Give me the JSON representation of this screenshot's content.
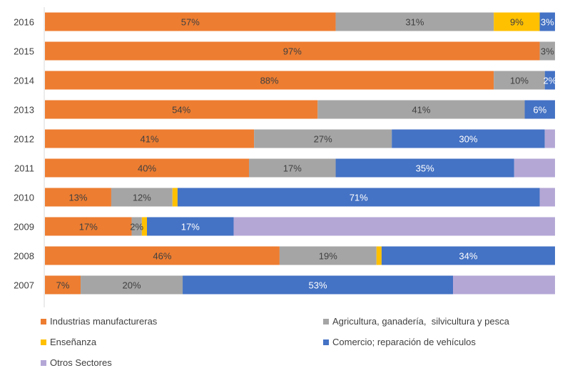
{
  "chart_data": {
    "type": "bar",
    "orientation": "horizontal",
    "stacked": "100%",
    "categories": [
      "2016",
      "2015",
      "2014",
      "2013",
      "2012",
      "2011",
      "2010",
      "2009",
      "2008",
      "2007"
    ],
    "series": [
      {
        "name": "Industrias manufactureras",
        "color": "#ED7D31",
        "values": [
          57,
          97,
          88,
          54,
          41,
          40,
          13,
          17,
          46,
          7
        ],
        "labels": [
          "57%",
          "97%",
          "88%",
          "54%",
          "41%",
          "40%",
          "13%",
          "17%",
          "46%",
          "7%"
        ]
      },
      {
        "name": "Agricultura, ganadería,  silvicultura y pesca",
        "color": "#A5A5A5",
        "values": [
          31,
          3,
          10,
          41,
          27,
          17,
          12,
          2,
          19,
          20
        ],
        "labels": [
          "31%",
          "3%",
          "10%",
          "41%",
          "27%",
          "17%",
          "12%",
          "2%",
          "19%",
          "20%"
        ]
      },
      {
        "name": "Enseñanza",
        "color": "#FFC000",
        "values": [
          9,
          0,
          0,
          0,
          0,
          0,
          1,
          1,
          1,
          0
        ],
        "labels": [
          "9%",
          "",
          "",
          "",
          "",
          "",
          "",
          "",
          "",
          ""
        ]
      },
      {
        "name": "Comercio; reparación de vehículos",
        "color": "#4472C4",
        "values": [
          3,
          0,
          2,
          6,
          30,
          35,
          71,
          17,
          34,
          53
        ],
        "labels": [
          "3%",
          "",
          "2%",
          "6%",
          "30%",
          "35%",
          "71%",
          "17%",
          "34%",
          "53%"
        ]
      },
      {
        "name": "Otros Sectores",
        "color": "#B4A7D6",
        "values": [
          0,
          0,
          0,
          0,
          2,
          8,
          3,
          63,
          0,
          20
        ],
        "labels": [
          "",
          "",
          "",
          "",
          "",
          "",
          "",
          "",
          "",
          ""
        ]
      }
    ],
    "legend_position": "bottom",
    "grid": false
  }
}
